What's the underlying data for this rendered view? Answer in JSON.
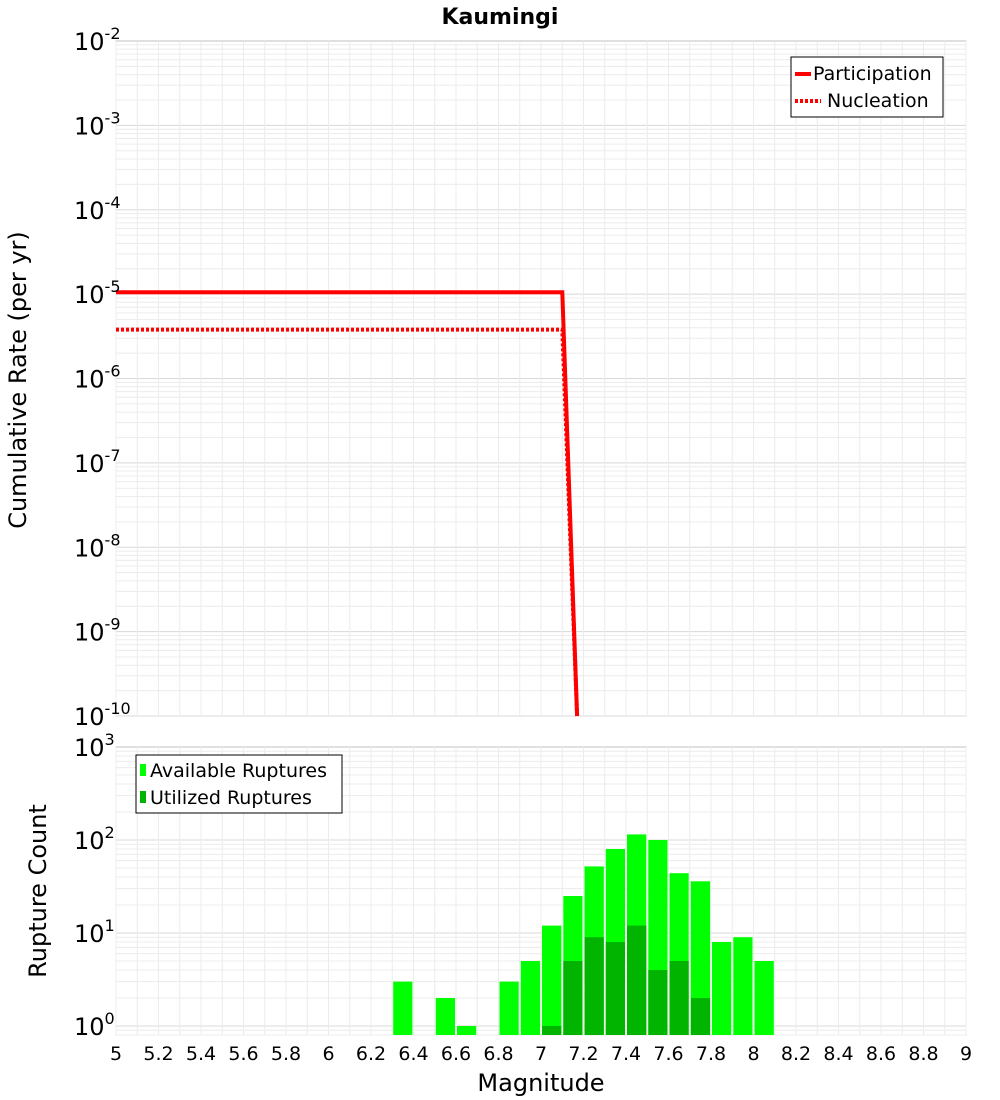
{
  "chart_data": [
    {
      "type": "line",
      "title": "Kaumingi",
      "ylabel": "Cumulative Rate (per yr)",
      "xlim": [
        5,
        9
      ],
      "ylim": [
        1e-10,
        0.01
      ],
      "yscale": "log",
      "grid": true,
      "legend_position": "top-right",
      "y_ticks": [
        {
          "base": "10",
          "exp": "-2",
          "value": 0.01
        },
        {
          "base": "10",
          "exp": "-3",
          "value": 0.001
        },
        {
          "base": "10",
          "exp": "-4",
          "value": 0.0001
        },
        {
          "base": "10",
          "exp": "-5",
          "value": 1e-05
        },
        {
          "base": "10",
          "exp": "-6",
          "value": 1e-06
        },
        {
          "base": "10",
          "exp": "-7",
          "value": 1e-07
        },
        {
          "base": "10",
          "exp": "-8",
          "value": 1e-08
        },
        {
          "base": "10",
          "exp": "-9",
          "value": 1e-09
        },
        {
          "base": "10",
          "exp": "-10",
          "value": 1e-10
        }
      ],
      "series": [
        {
          "name": "Participation",
          "style": "solid",
          "color": "#ff0000",
          "x": [
            5.0,
            7.1,
            7.17
          ],
          "y": [
            1.05e-05,
            1.05e-05,
            1e-10
          ]
        },
        {
          "name": "Nucleation",
          "style": "dotted",
          "color": "#ff0000",
          "x": [
            5.0,
            7.1,
            7.17
          ],
          "y": [
            3.8e-06,
            3.8e-06,
            1e-10
          ]
        }
      ]
    },
    {
      "type": "bar",
      "xlabel": "Magnitude",
      "ylabel": "Rupture Count",
      "xlim": [
        5,
        9
      ],
      "ylim": [
        0.8,
        1000
      ],
      "yscale": "log",
      "grid": true,
      "legend_position": "top-left",
      "bin_width": 0.1,
      "y_ticks": [
        {
          "base": "10",
          "exp": "3",
          "value": 1000
        },
        {
          "base": "10",
          "exp": "2",
          "value": 100
        },
        {
          "base": "10",
          "exp": "1",
          "value": 10
        },
        {
          "base": "10",
          "exp": "0",
          "value": 1
        }
      ],
      "x_ticks": [
        "5",
        "5.2",
        "5.4",
        "5.6",
        "5.8",
        "6",
        "6.2",
        "6.4",
        "6.6",
        "6.8",
        "7",
        "7.2",
        "7.4",
        "7.6",
        "7.8",
        "8",
        "8.2",
        "8.4",
        "8.6",
        "8.8",
        "9"
      ],
      "series": [
        {
          "name": "Available Ruptures",
          "color": "#00ff00",
          "x": [
            6.35,
            6.55,
            6.65,
            6.85,
            6.95,
            7.05,
            7.15,
            7.25,
            7.35,
            7.45,
            7.55,
            7.65,
            7.75,
            7.85,
            7.95,
            8.05
          ],
          "values": [
            3,
            2,
            1,
            3,
            5,
            12,
            25,
            52,
            80,
            115,
            100,
            44,
            36,
            8,
            9,
            5
          ]
        },
        {
          "name": "Utilized Ruptures",
          "color": "#00b400",
          "x": [
            7.05,
            7.15,
            7.25,
            7.35,
            7.45,
            7.55,
            7.65,
            7.75
          ],
          "values": [
            1,
            5,
            9,
            8,
            12,
            4,
            5,
            2
          ]
        }
      ]
    }
  ]
}
